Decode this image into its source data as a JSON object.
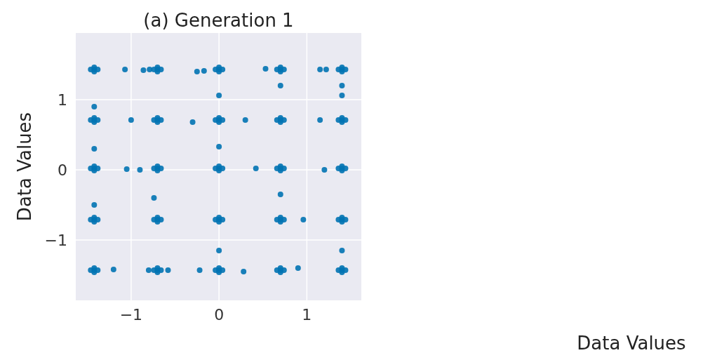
{
  "chart_data": {
    "type": "scatter",
    "title": "(a) Generation 1",
    "ylabel": "Data Values",
    "annotations": [
      "Data Values"
    ],
    "xlim": [
      -1.63,
      1.62
    ],
    "ylim": [
      -1.86,
      1.95
    ],
    "xticks": [
      {
        "value": -1,
        "label": "−1"
      },
      0,
      1
    ],
    "yticks": [
      {
        "value": -1,
        "label": "−1"
      },
      0,
      1
    ],
    "grid": true,
    "marker": "circle",
    "series": [
      {
        "color": "#0173b2",
        "x": [
          -1.42,
          -1.46,
          -1.38,
          -1.42,
          -1.42,
          -0.7,
          -0.74,
          -0.66,
          -0.7,
          -0.7,
          0,
          -0.04,
          0.04,
          0,
          0,
          0.7,
          0.66,
          0.74,
          0.7,
          0.7,
          1.4,
          1.36,
          1.44,
          1.4,
          1.4,
          -1.42,
          -1.46,
          -1.38,
          -1.42,
          -1.42,
          -0.7,
          -0.74,
          -0.66,
          -0.7,
          -0.7,
          0,
          -0.04,
          0.04,
          0,
          0,
          0.7,
          0.66,
          0.74,
          0.7,
          0.7,
          1.4,
          1.36,
          1.44,
          1.4,
          1.4,
          -1.42,
          -1.46,
          -1.38,
          -1.42,
          -1.42,
          -0.7,
          -0.74,
          -0.66,
          -0.7,
          -0.7,
          0,
          -0.04,
          0.04,
          0,
          0,
          0.7,
          0.66,
          0.74,
          0.7,
          0.7,
          1.4,
          1.36,
          1.44,
          1.4,
          1.4,
          -1.42,
          -1.46,
          -1.38,
          -1.42,
          -1.42,
          -0.7,
          -0.74,
          -0.66,
          -0.7,
          -0.7,
          0,
          -0.04,
          0.04,
          0,
          0,
          0.7,
          0.66,
          0.74,
          0.7,
          0.7,
          1.4,
          1.36,
          1.44,
          1.4,
          1.4,
          -1.42,
          -1.46,
          -1.38,
          -1.42,
          -1.42,
          -0.7,
          -0.74,
          -0.66,
          -0.7,
          -0.7,
          0,
          -0.04,
          0.04,
          0,
          0,
          0.7,
          0.66,
          0.74,
          0.7,
          0.7,
          1.4,
          1.36,
          1.44,
          1.4,
          1.4,
          -1.07,
          -0.86,
          -0.79,
          -0.25,
          -0.17,
          0.53,
          1.15,
          1.22,
          0,
          0.7,
          1.4,
          1.4,
          -1.42,
          -1.0,
          -0.3,
          0.3,
          1.15,
          -1.42,
          -1.05,
          -0.9,
          0,
          0.42,
          1.2,
          -0.74,
          0.7,
          0.96,
          -1.42,
          -1.2,
          -0.8,
          -0.58,
          -0.22,
          0.28,
          0.9,
          0,
          1.4
        ],
        "values": [
          1.43,
          1.43,
          1.43,
          1.4,
          1.46,
          1.43,
          1.43,
          1.43,
          1.4,
          1.46,
          1.43,
          1.43,
          1.43,
          1.4,
          1.46,
          1.43,
          1.43,
          1.43,
          1.4,
          1.46,
          1.43,
          1.43,
          1.43,
          1.4,
          1.46,
          0.71,
          0.71,
          0.71,
          0.68,
          0.74,
          0.71,
          0.71,
          0.71,
          0.68,
          0.74,
          0.71,
          0.71,
          0.71,
          0.68,
          0.74,
          0.71,
          0.71,
          0.71,
          0.68,
          0.74,
          0.71,
          0.71,
          0.71,
          0.68,
          0.74,
          0.02,
          0.02,
          0.02,
          -0.01,
          0.05,
          0.02,
          0.02,
          0.02,
          -0.01,
          0.05,
          0.02,
          0.02,
          0.02,
          -0.01,
          0.05,
          0.02,
          0.02,
          0.02,
          -0.01,
          0.05,
          0.02,
          0.02,
          0.02,
          -0.01,
          0.05,
          -0.71,
          -0.71,
          -0.71,
          -0.74,
          -0.68,
          -0.71,
          -0.71,
          -0.71,
          -0.74,
          -0.68,
          -0.71,
          -0.71,
          -0.71,
          -0.74,
          -0.68,
          -0.71,
          -0.71,
          -0.71,
          -0.74,
          -0.68,
          -0.71,
          -0.71,
          -0.71,
          -0.74,
          -0.68,
          -1.43,
          -1.43,
          -1.43,
          -1.46,
          -1.4,
          -1.43,
          -1.43,
          -1.43,
          -1.46,
          -1.4,
          -1.43,
          -1.43,
          -1.43,
          -1.46,
          -1.4,
          -1.43,
          -1.43,
          -1.43,
          -1.46,
          -1.4,
          -1.43,
          -1.43,
          -1.43,
          -1.46,
          -1.4,
          1.43,
          1.42,
          1.43,
          1.4,
          1.41,
          1.44,
          1.43,
          1.43,
          1.06,
          1.2,
          1.2,
          1.06,
          0.9,
          0.71,
          0.68,
          0.71,
          0.71,
          0.3,
          0.01,
          0.0,
          0.33,
          0.02,
          0.0,
          -0.4,
          -0.35,
          -0.71,
          -0.5,
          -1.42,
          -1.43,
          -1.43,
          -1.43,
          -1.45,
          -1.4,
          -1.15,
          -1.15
        ]
      }
    ]
  }
}
